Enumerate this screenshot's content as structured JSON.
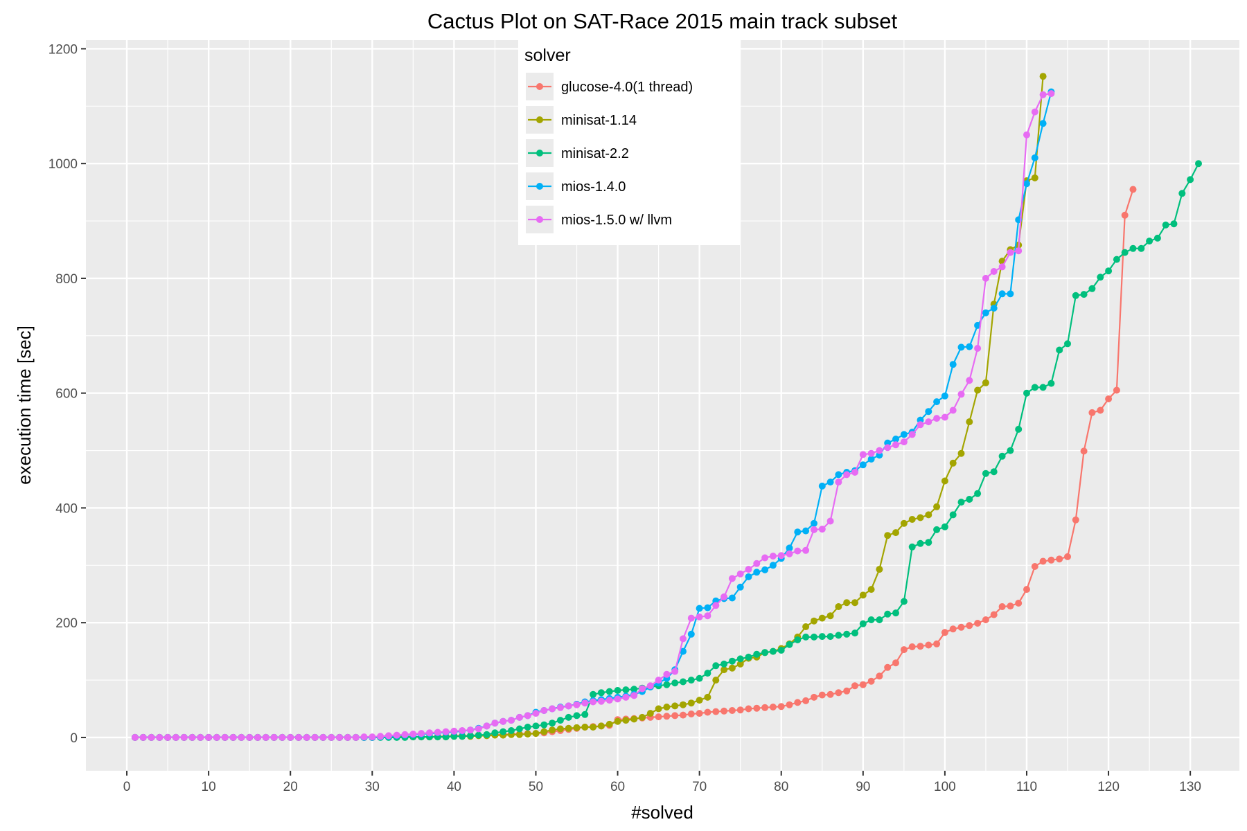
{
  "chart_data": {
    "type": "line",
    "title": "Cactus Plot on SAT-Race 2015 main track subset",
    "xlabel": "#solved",
    "ylabel": "execution time [sec]",
    "xlim": [
      -5,
      136
    ],
    "ylim": [
      -58,
      1215
    ],
    "x_ticks": [
      0,
      10,
      20,
      30,
      40,
      50,
      60,
      70,
      80,
      90,
      100,
      110,
      120,
      130
    ],
    "y_ticks": [
      0,
      200,
      400,
      600,
      800,
      1000,
      1200
    ],
    "grid": true,
    "legend": {
      "title": "solver",
      "position": "top-center-inside"
    },
    "series": [
      {
        "name": "glucose-4.0(1 thread)",
        "color": "#F8766D",
        "y": [
          0,
          0,
          0,
          0,
          0,
          0,
          0,
          0,
          0,
          0,
          0,
          0,
          0,
          0,
          0,
          0,
          0,
          0,
          0,
          0,
          0,
          0,
          0,
          0,
          0,
          0,
          0,
          0,
          0,
          0,
          1,
          1,
          1,
          1,
          1,
          1,
          1,
          2,
          2,
          3,
          3,
          3,
          4,
          4,
          5,
          5,
          6,
          6,
          7,
          7,
          8,
          10,
          12,
          14,
          16,
          18,
          19,
          20,
          21,
          31,
          32,
          33,
          34,
          35,
          36,
          37,
          38,
          39,
          41,
          42,
          44,
          45,
          46,
          47,
          48,
          50,
          51,
          52,
          53,
          54,
          57,
          61,
          64,
          70,
          74,
          75,
          78,
          81,
          90,
          92,
          98,
          107,
          122,
          130,
          153,
          158,
          159,
          161,
          163,
          183,
          189,
          192,
          195,
          199,
          205,
          214,
          228,
          229,
          234,
          258,
          298,
          307,
          309,
          311,
          315,
          379,
          499,
          566,
          570,
          590,
          605,
          910,
          955
        ]
      },
      {
        "name": "minisat-1.14",
        "color": "#A3A500",
        "y": [
          0,
          0,
          0,
          0,
          0,
          0,
          0,
          0,
          0,
          0,
          0,
          0,
          0,
          0,
          0,
          0,
          0,
          0,
          0,
          0,
          0,
          0,
          0,
          0,
          0,
          0,
          0,
          0,
          0,
          0,
          1,
          1,
          1,
          1,
          1,
          1,
          1,
          1,
          1,
          2,
          2,
          2,
          3,
          3,
          4,
          4,
          5,
          5,
          6,
          7,
          10,
          13,
          15,
          16,
          17,
          18,
          18,
          20,
          23,
          28,
          30,
          32,
          35,
          42,
          50,
          53,
          55,
          57,
          60,
          65,
          70,
          100,
          118,
          121,
          128,
          138,
          140,
          148,
          150,
          155,
          163,
          175,
          193,
          203,
          208,
          212,
          228,
          235,
          235,
          248,
          258,
          293,
          352,
          357,
          373,
          380,
          383,
          388,
          402,
          447,
          478,
          495,
          550,
          605,
          618,
          755,
          830,
          850,
          858,
          970,
          975,
          1152
        ]
      },
      {
        "name": "minisat-2.2",
        "color": "#00BF7D",
        "y": [
          0,
          0,
          0,
          0,
          0,
          0,
          0,
          0,
          0,
          0,
          0,
          0,
          0,
          0,
          0,
          0,
          0,
          0,
          0,
          0,
          0,
          0,
          0,
          0,
          0,
          0,
          0,
          0,
          0,
          0,
          0,
          0,
          0,
          0,
          1,
          1,
          1,
          1,
          1,
          2,
          2,
          3,
          4,
          5,
          8,
          10,
          12,
          15,
          18,
          20,
          22,
          25,
          30,
          35,
          38,
          40,
          75,
          78,
          80,
          82,
          83,
          84,
          86,
          88,
          90,
          92,
          95,
          97,
          100,
          103,
          112,
          125,
          128,
          133,
          137,
          140,
          145,
          148,
          150,
          152,
          162,
          170,
          175,
          175,
          176,
          176,
          178,
          180,
          182,
          198,
          205,
          205,
          215,
          217,
          237,
          332,
          338,
          340,
          362,
          367,
          388,
          410,
          415,
          425,
          460,
          463,
          490,
          500,
          537,
          600,
          610,
          610,
          617,
          675,
          686,
          770,
          772,
          782,
          802,
          813,
          833,
          845,
          852,
          852,
          865,
          870,
          893,
          895,
          948,
          972,
          1000
        ]
      },
      {
        "name": "mios-1.4.0",
        "color": "#00B0F6",
        "y": [
          0,
          0,
          0,
          0,
          0,
          0,
          0,
          0,
          0,
          0,
          0,
          0,
          0,
          0,
          0,
          0,
          0,
          0,
          0,
          0,
          0,
          0,
          0,
          0,
          0,
          0,
          0,
          0,
          0,
          0,
          1,
          2,
          3,
          4,
          5,
          6,
          7,
          8,
          9,
          10,
          11,
          13,
          16,
          20,
          25,
          28,
          30,
          35,
          38,
          44,
          47,
          50,
          53,
          55,
          58,
          62,
          64,
          66,
          68,
          70,
          72,
          75,
          80,
          88,
          95,
          103,
          118,
          150,
          180,
          225,
          226,
          238,
          242,
          243,
          262,
          280,
          288,
          292,
          300,
          312,
          330,
          358,
          360,
          373,
          438,
          445,
          458,
          462,
          465,
          475,
          485,
          492,
          513,
          520,
          528,
          532,
          553,
          568,
          585,
          595,
          650,
          680,
          681,
          718,
          740,
          748,
          773,
          773,
          902,
          965,
          1010,
          1070,
          1125
        ]
      },
      {
        "name": "mios-1.5.0 w/ llvm",
        "color": "#E76BF3",
        "y": [
          0,
          0,
          0,
          0,
          0,
          0,
          0,
          0,
          0,
          0,
          0,
          0,
          0,
          0,
          0,
          0,
          0,
          0,
          0,
          0,
          0,
          0,
          0,
          0,
          0,
          0,
          0,
          0,
          1,
          1,
          2,
          3,
          4,
          5,
          6,
          7,
          8,
          9,
          10,
          11,
          12,
          13,
          15,
          20,
          25,
          28,
          30,
          35,
          38,
          42,
          47,
          50,
          52,
          55,
          57,
          60,
          62,
          63,
          65,
          67,
          70,
          73,
          85,
          90,
          100,
          110,
          115,
          172,
          208,
          210,
          212,
          230,
          245,
          277,
          285,
          293,
          303,
          313,
          316,
          317,
          320,
          325,
          326,
          362,
          363,
          377,
          445,
          458,
          462,
          493,
          495,
          500,
          505,
          510,
          515,
          528,
          545,
          550,
          556,
          558,
          570,
          598,
          622,
          678,
          800,
          812,
          820,
          845,
          848,
          1050,
          1090,
          1120,
          1122
        ]
      }
    ]
  }
}
